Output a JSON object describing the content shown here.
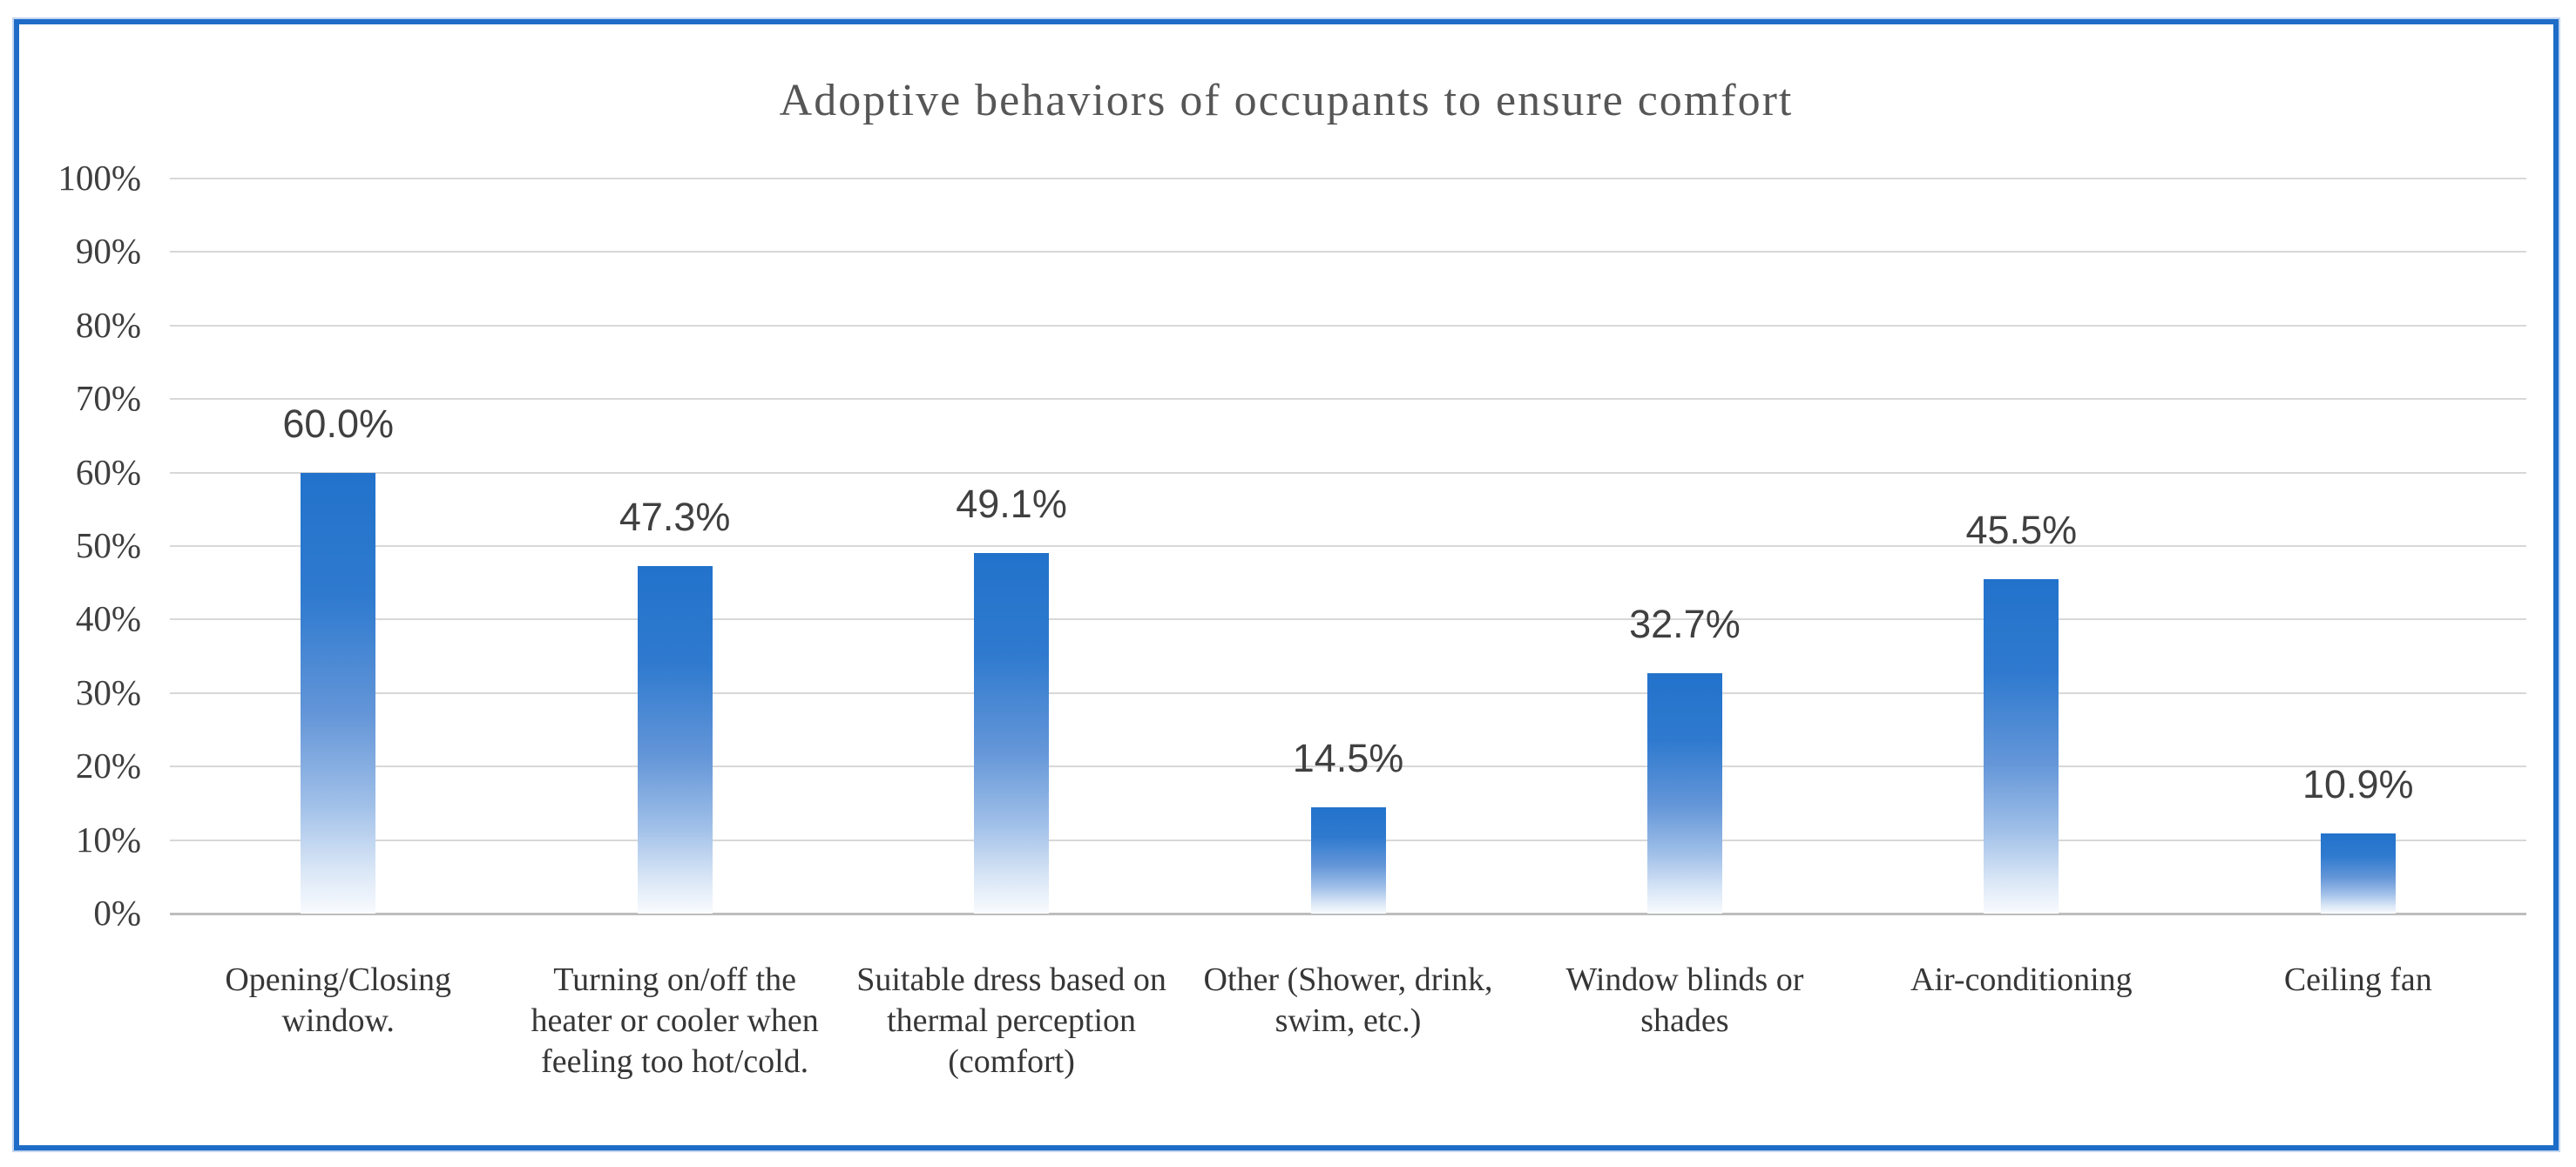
{
  "chart_data": {
    "type": "bar",
    "title": "Adoptive behaviors of occupants to ensure comfort",
    "categories": [
      "Opening/Closing window.",
      "Turning on/off the heater or cooler when feeling too hot/cold.",
      "Suitable dress based on thermal perception (comfort)",
      "Other (Shower, drink, swim, etc.)",
      "Window blinds or shades",
      "Air-conditioning",
      "Ceiling fan"
    ],
    "values": [
      60.0,
      47.3,
      49.1,
      14.5,
      32.7,
      45.5,
      10.9
    ],
    "data_labels": [
      "60.0%",
      "47.3%",
      "49.1%",
      "14.5%",
      "32.7%",
      "45.5%",
      "10.9%"
    ],
    "xlabel": "",
    "ylabel": "",
    "ylim": [
      0,
      100
    ],
    "y_tick_step": 10,
    "y_tick_labels": [
      "0%",
      "10%",
      "20%",
      "30%",
      "40%",
      "50%",
      "60%",
      "70%",
      "80%",
      "90%",
      "100%"
    ],
    "grid": true,
    "legend": false,
    "colors": {
      "bar_gradient_top": "#2272CB",
      "bar_gradient_upper_mid": "#2F7ACF",
      "bar_gradient_mid": "#6496D8",
      "bar_gradient_lower_mid": "#9FBFE8",
      "bar_gradient_low": "#D9E6F6",
      "bar_gradient_bottom": "#F9FBFE",
      "frame_border": "#1E6CC7",
      "gridline": "#D8D8D8",
      "axis_line": "#BDBDBD",
      "title_text": "#565656",
      "tick_text": "#3E3E3E",
      "data_label_text": "#404040",
      "category_text": "#363636"
    }
  }
}
